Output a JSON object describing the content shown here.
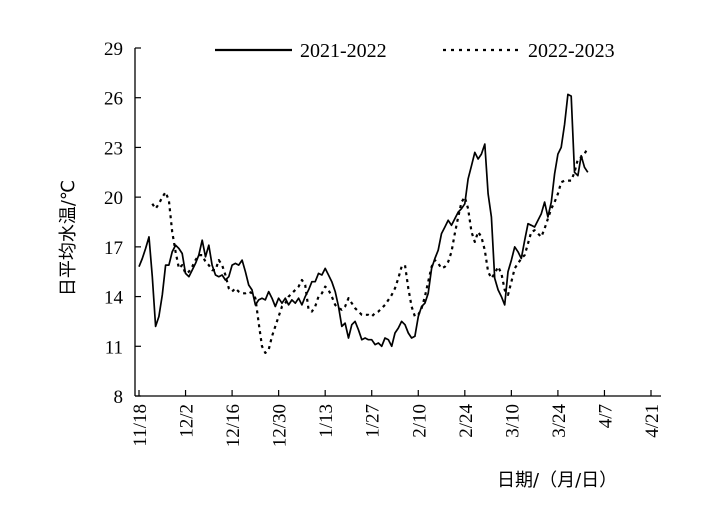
{
  "chart_data": {
    "type": "line",
    "title": "",
    "xlabel": "日期/（月/日）",
    "ylabel": "日平均水温/℃",
    "ylim": [
      8,
      29
    ],
    "yticks": [
      8,
      11,
      14,
      17,
      20,
      23,
      26,
      29
    ],
    "x_tick_labels": [
      "11/18",
      "12/2",
      "12/16",
      "12/30",
      "1/13",
      "1/27",
      "2/10",
      "2/24",
      "3/10",
      "3/24",
      "4/7",
      "4/21"
    ],
    "x_range_days": [
      0,
      154
    ],
    "grid": false,
    "legend_position": "top",
    "series": [
      {
        "name": "2021-2022",
        "style": "solid",
        "color": "#000000",
        "points": [
          [
            0,
            15.8
          ],
          [
            1,
            16.3
          ],
          [
            2,
            16.9
          ],
          [
            3,
            17.6
          ],
          [
            4,
            15.2
          ],
          [
            5,
            12.2
          ],
          [
            6,
            12.8
          ],
          [
            7,
            14.1
          ],
          [
            8,
            15.9
          ],
          [
            9,
            15.9
          ],
          [
            10,
            16.7
          ],
          [
            11,
            17.1
          ],
          [
            12,
            16.9
          ],
          [
            13,
            16.6
          ],
          [
            14,
            15.4
          ],
          [
            15,
            15.2
          ],
          [
            16,
            15.6
          ],
          [
            17,
            16.0
          ],
          [
            18,
            16.5
          ],
          [
            19,
            17.4
          ],
          [
            20,
            16.4
          ],
          [
            21,
            17.1
          ],
          [
            22,
            15.9
          ],
          [
            23,
            15.3
          ],
          [
            24,
            15.2
          ],
          [
            25,
            15.3
          ],
          [
            26,
            15.0
          ],
          [
            27,
            15.2
          ],
          [
            28,
            15.9
          ],
          [
            29,
            16.0
          ],
          [
            30,
            15.9
          ],
          [
            31,
            16.2
          ],
          [
            32,
            15.5
          ],
          [
            33,
            14.7
          ],
          [
            34,
            14.4
          ],
          [
            35,
            13.5
          ],
          [
            36,
            13.8
          ],
          [
            37,
            13.9
          ],
          [
            38,
            13.8
          ],
          [
            39,
            14.3
          ],
          [
            40,
            13.9
          ],
          [
            41,
            13.4
          ],
          [
            42,
            13.9
          ],
          [
            43,
            13.6
          ],
          [
            44,
            13.9
          ],
          [
            45,
            13.5
          ],
          [
            46,
            13.8
          ],
          [
            47,
            13.6
          ],
          [
            48,
            13.9
          ],
          [
            49,
            13.5
          ],
          [
            50,
            14.0
          ],
          [
            51,
            14.4
          ],
          [
            52,
            14.9
          ],
          [
            53,
            14.9
          ],
          [
            54,
            15.4
          ],
          [
            55,
            15.3
          ],
          [
            56,
            15.7
          ],
          [
            57,
            15.3
          ],
          [
            58,
            14.9
          ],
          [
            59,
            14.3
          ],
          [
            60,
            13.4
          ],
          [
            61,
            12.2
          ],
          [
            62,
            12.4
          ],
          [
            63,
            11.5
          ],
          [
            64,
            12.3
          ],
          [
            65,
            12.5
          ],
          [
            66,
            12.0
          ],
          [
            67,
            11.4
          ],
          [
            68,
            11.5
          ],
          [
            69,
            11.4
          ],
          [
            70,
            11.4
          ],
          [
            71,
            11.1
          ],
          [
            72,
            11.2
          ],
          [
            73,
            11.0
          ],
          [
            74,
            11.5
          ],
          [
            75,
            11.4
          ],
          [
            76,
            11.0
          ],
          [
            77,
            11.8
          ],
          [
            78,
            12.1
          ],
          [
            79,
            12.5
          ],
          [
            80,
            12.3
          ],
          [
            81,
            11.8
          ],
          [
            82,
            11.5
          ],
          [
            83,
            11.6
          ],
          [
            84,
            12.8
          ],
          [
            85,
            13.4
          ],
          [
            86,
            13.6
          ],
          [
            87,
            14.2
          ],
          [
            88,
            15.7
          ],
          [
            89,
            16.3
          ],
          [
            90,
            16.8
          ],
          [
            91,
            17.8
          ],
          [
            92,
            18.2
          ],
          [
            93,
            18.6
          ],
          [
            94,
            18.3
          ],
          [
            95,
            18.7
          ],
          [
            96,
            19.1
          ],
          [
            97,
            19.3
          ],
          [
            98,
            19.6
          ],
          [
            99,
            21.1
          ],
          [
            100,
            21.9
          ],
          [
            101,
            22.7
          ],
          [
            102,
            22.3
          ],
          [
            103,
            22.6
          ],
          [
            104,
            23.2
          ],
          [
            105,
            20.2
          ],
          [
            106,
            18.8
          ],
          [
            107,
            15.1
          ],
          [
            108,
            14.4
          ],
          [
            109,
            14.0
          ],
          [
            110,
            13.5
          ],
          [
            111,
            15.5
          ],
          [
            112,
            16.2
          ],
          [
            113,
            17.0
          ],
          [
            114,
            16.7
          ],
          [
            115,
            16.3
          ],
          [
            116,
            17.4
          ],
          [
            117,
            18.4
          ],
          [
            118,
            18.3
          ],
          [
            119,
            18.2
          ],
          [
            120,
            18.6
          ],
          [
            121,
            19.0
          ],
          [
            122,
            19.7
          ],
          [
            123,
            18.8
          ],
          [
            124,
            19.7
          ],
          [
            125,
            21.4
          ],
          [
            126,
            22.6
          ],
          [
            127,
            23.0
          ],
          [
            128,
            24.4
          ],
          [
            129,
            26.2
          ],
          [
            130,
            26.1
          ],
          [
            131,
            21.5
          ],
          [
            132,
            21.3
          ],
          [
            133,
            22.5
          ],
          [
            134,
            21.8
          ],
          [
            135,
            21.5
          ]
        ]
      },
      {
        "name": "2022-2023",
        "style": "dotted",
        "color": "#000000",
        "points": [
          [
            4,
            19.6
          ],
          [
            5,
            19.3
          ],
          [
            6,
            19.6
          ],
          [
            7,
            20.0
          ],
          [
            8,
            20.3
          ],
          [
            9,
            19.8
          ],
          [
            10,
            17.9
          ],
          [
            11,
            16.7
          ],
          [
            12,
            15.7
          ],
          [
            13,
            15.9
          ],
          [
            14,
            15.4
          ],
          [
            15,
            15.5
          ],
          [
            16,
            15.8
          ],
          [
            17,
            16.2
          ],
          [
            18,
            16.5
          ],
          [
            19,
            16.5
          ],
          [
            20,
            16.1
          ],
          [
            21,
            15.9
          ],
          [
            22,
            15.6
          ],
          [
            23,
            15.6
          ],
          [
            24,
            16.2
          ],
          [
            25,
            15.9
          ],
          [
            26,
            15.3
          ],
          [
            27,
            14.5
          ],
          [
            28,
            14.3
          ],
          [
            29,
            14.5
          ],
          [
            30,
            14.3
          ],
          [
            31,
            14.2
          ],
          [
            32,
            14.2
          ],
          [
            33,
            14.3
          ],
          [
            34,
            14.2
          ],
          [
            35,
            13.9
          ],
          [
            36,
            12.4
          ],
          [
            37,
            11.0
          ],
          [
            38,
            10.6
          ],
          [
            39,
            10.8
          ],
          [
            40,
            11.6
          ],
          [
            41,
            12.2
          ],
          [
            42,
            12.8
          ],
          [
            43,
            13.4
          ],
          [
            44,
            13.6
          ],
          [
            45,
            14.0
          ],
          [
            46,
            14.2
          ],
          [
            47,
            14.4
          ],
          [
            48,
            14.6
          ],
          [
            49,
            15.0
          ],
          [
            50,
            14.7
          ],
          [
            51,
            13.2
          ],
          [
            52,
            13.1
          ],
          [
            53,
            13.4
          ],
          [
            54,
            14.0
          ],
          [
            55,
            14.2
          ],
          [
            56,
            14.6
          ],
          [
            57,
            14.4
          ],
          [
            58,
            14.0
          ],
          [
            59,
            13.5
          ],
          [
            60,
            13.3
          ],
          [
            61,
            13.2
          ],
          [
            62,
            13.4
          ],
          [
            63,
            13.9
          ],
          [
            64,
            13.6
          ],
          [
            65,
            13.3
          ],
          [
            66,
            13.1
          ],
          [
            67,
            12.9
          ],
          [
            68,
            12.9
          ],
          [
            69,
            12.9
          ],
          [
            70,
            12.8
          ],
          [
            71,
            13.0
          ],
          [
            72,
            13.1
          ],
          [
            73,
            13.3
          ],
          [
            74,
            13.5
          ],
          [
            75,
            13.8
          ],
          [
            76,
            14.1
          ],
          [
            77,
            14.5
          ],
          [
            78,
            15.1
          ],
          [
            79,
            15.8
          ],
          [
            80,
            15.9
          ],
          [
            81,
            14.5
          ],
          [
            82,
            13.4
          ],
          [
            83,
            12.8
          ],
          [
            84,
            12.9
          ],
          [
            85,
            13.3
          ],
          [
            86,
            14.0
          ],
          [
            87,
            14.9
          ],
          [
            88,
            15.8
          ],
          [
            89,
            16.2
          ],
          [
            90,
            16.0
          ],
          [
            91,
            15.7
          ],
          [
            92,
            15.8
          ],
          [
            93,
            16.1
          ],
          [
            94,
            16.7
          ],
          [
            95,
            17.8
          ],
          [
            96,
            18.8
          ],
          [
            97,
            19.7
          ],
          [
            98,
            20.0
          ],
          [
            99,
            19.3
          ],
          [
            100,
            17.9
          ],
          [
            101,
            17.3
          ],
          [
            102,
            17.9
          ],
          [
            103,
            17.6
          ],
          [
            104,
            16.8
          ],
          [
            105,
            15.5
          ],
          [
            106,
            15.1
          ],
          [
            107,
            15.4
          ],
          [
            108,
            15.8
          ],
          [
            109,
            15.4
          ],
          [
            110,
            14.4
          ],
          [
            111,
            14.1
          ],
          [
            112,
            14.9
          ],
          [
            113,
            15.7
          ],
          [
            114,
            16.0
          ],
          [
            115,
            16.3
          ],
          [
            116,
            16.5
          ],
          [
            117,
            17.2
          ],
          [
            118,
            17.9
          ],
          [
            119,
            18.0
          ],
          [
            120,
            17.8
          ],
          [
            121,
            17.6
          ],
          [
            122,
            18.1
          ],
          [
            123,
            18.7
          ],
          [
            124,
            19.3
          ],
          [
            125,
            19.7
          ],
          [
            126,
            20.2
          ],
          [
            127,
            20.9
          ],
          [
            128,
            21.0
          ],
          [
            129,
            21.0
          ],
          [
            130,
            21.0
          ],
          [
            131,
            21.5
          ],
          [
            132,
            22.3
          ],
          [
            133,
            22.4
          ],
          [
            134,
            22.6
          ],
          [
            135,
            23.0
          ]
        ]
      }
    ]
  }
}
